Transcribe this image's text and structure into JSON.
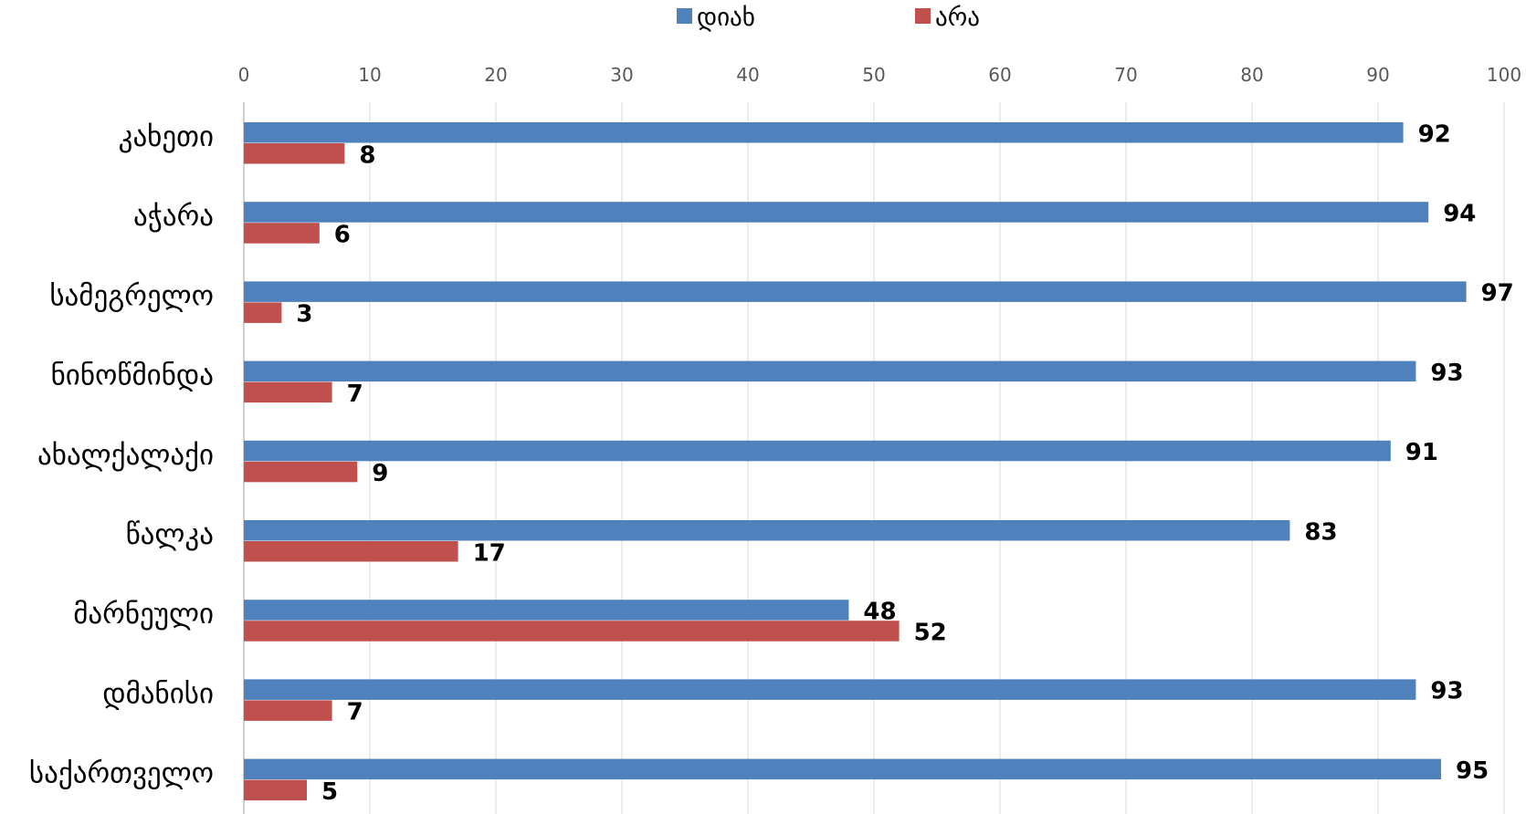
{
  "chart_data": {
    "type": "bar",
    "orientation": "horizontal",
    "categories": [
      "კახეთი",
      "აჭარა",
      "სამეგრელო",
      "ნინოწმინდა",
      "ახალქალაქი",
      "წალკა",
      "მარნეული",
      "დმანისი",
      "საქართველო"
    ],
    "series": [
      {
        "name": "დიახ",
        "color": "#4F81BD",
        "values": [
          92,
          94,
          97,
          93,
          91,
          83,
          48,
          93,
          95
        ]
      },
      {
        "name": "არა",
        "color": "#C0504D",
        "values": [
          8,
          6,
          3,
          7,
          9,
          17,
          52,
          7,
          5
        ]
      }
    ],
    "xlim": [
      0,
      100
    ],
    "x_ticks": [
      0,
      10,
      20,
      30,
      40,
      50,
      60,
      70,
      80,
      90,
      100
    ],
    "x_axis_position": "top",
    "grid": true,
    "data_labels": true,
    "legend_position": "top",
    "title": "",
    "xlabel": "",
    "ylabel": ""
  }
}
